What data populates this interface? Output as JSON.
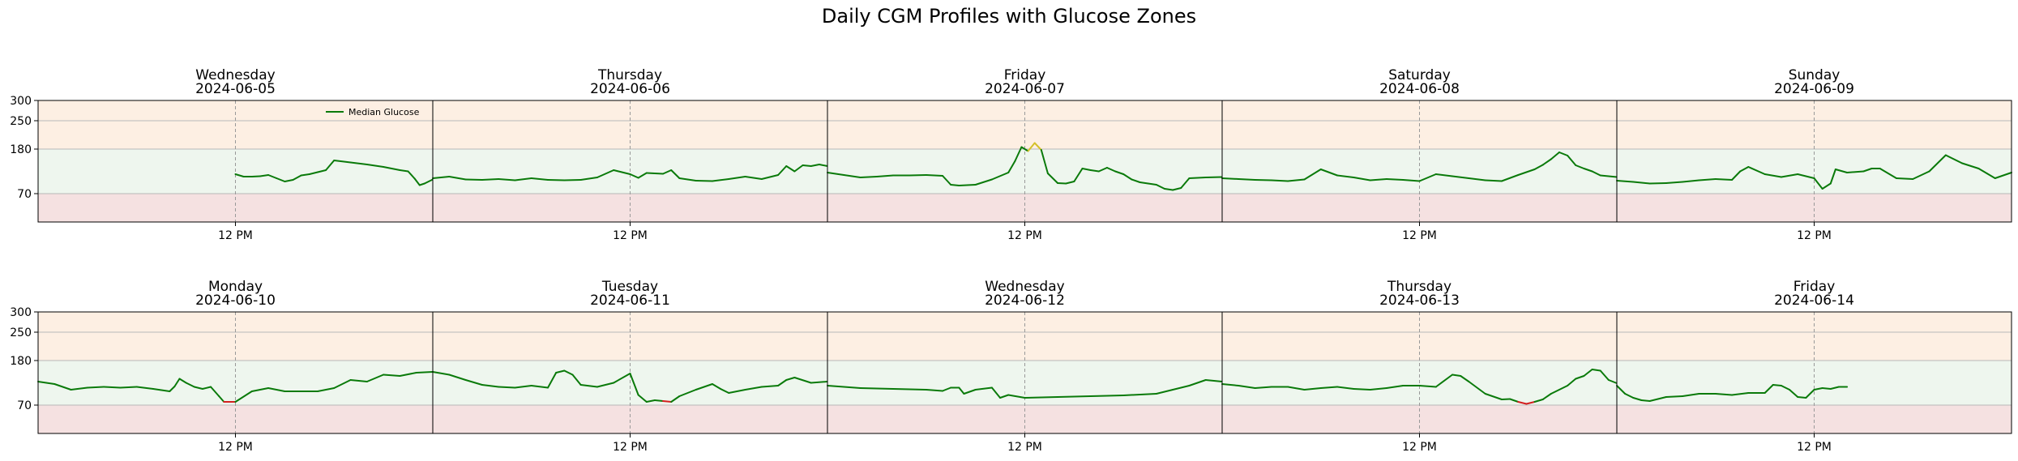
{
  "figure": {
    "title": "Daily CGM Profiles with Glucose Zones"
  },
  "chart_data": {
    "type": "line",
    "y_range": [
      0,
      300
    ],
    "y_ticks": [
      70,
      180,
      250,
      300
    ],
    "x_tick_label": "12 PM",
    "zones": [
      {
        "name": "low",
        "from": 0,
        "to": 70,
        "color": "#f5e1e1"
      },
      {
        "name": "in-range",
        "from": 70,
        "to": 180,
        "color": "#eef6ee"
      },
      {
        "name": "high",
        "from": 180,
        "to": 300,
        "color": "#fdefe3"
      }
    ],
    "colors": {
      "normal": "#0a7a0a",
      "low": "#d42020",
      "high": "#d4c02a",
      "gridline": "#b8b8b8",
      "midday": "#999999"
    },
    "legend": {
      "label": "Median Glucose",
      "placement": "upper-right of first panel"
    },
    "panels": [
      {
        "weekday": "Wednesday",
        "date": "2024-06-05",
        "points": [
          [
            12,
            118
          ],
          [
            12.5,
            112
          ],
          [
            13,
            112
          ],
          [
            13.5,
            113
          ],
          [
            14,
            116
          ],
          [
            14.5,
            108
          ],
          [
            15,
            100
          ],
          [
            15.5,
            104
          ],
          [
            16,
            115
          ],
          [
            16.5,
            118
          ],
          [
            17,
            123
          ],
          [
            17.5,
            128
          ],
          [
            18,
            152
          ],
          [
            19,
            147
          ],
          [
            20,
            142
          ],
          [
            21,
            136
          ],
          [
            22,
            128
          ],
          [
            22.5,
            125
          ],
          [
            22.9,
            107
          ],
          [
            23.2,
            91
          ],
          [
            23.5,
            95
          ],
          [
            24,
            105
          ]
        ]
      },
      {
        "weekday": "Thursday",
        "date": "2024-06-06",
        "points": [
          [
            0,
            108
          ],
          [
            1,
            112
          ],
          [
            2,
            105
          ],
          [
            3,
            104
          ],
          [
            4,
            106
          ],
          [
            5,
            103
          ],
          [
            6,
            108
          ],
          [
            7,
            104
          ],
          [
            8,
            103
          ],
          [
            9,
            104
          ],
          [
            10,
            110
          ],
          [
            11,
            128
          ],
          [
            12,
            118
          ],
          [
            12.5,
            109
          ],
          [
            13,
            121
          ],
          [
            14,
            119
          ],
          [
            14.5,
            128
          ],
          [
            15,
            108
          ],
          [
            16,
            102
          ],
          [
            17,
            101
          ],
          [
            18,
            106
          ],
          [
            19,
            112
          ],
          [
            20,
            106
          ],
          [
            21,
            116
          ],
          [
            21.5,
            138
          ],
          [
            22,
            125
          ],
          [
            22.5,
            140
          ],
          [
            23,
            138
          ],
          [
            23.5,
            142
          ],
          [
            24,
            138
          ]
        ]
      },
      {
        "weekday": "Friday",
        "date": "2024-06-07",
        "points": [
          [
            0,
            122
          ],
          [
            1,
            116
          ],
          [
            2,
            110
          ],
          [
            3,
            112
          ],
          [
            4,
            115
          ],
          [
            5,
            115
          ],
          [
            6,
            116
          ],
          [
            7,
            114
          ],
          [
            7.5,
            92
          ],
          [
            8,
            90
          ],
          [
            9,
            92
          ],
          [
            10,
            105
          ],
          [
            11,
            122
          ],
          [
            11.4,
            150
          ],
          [
            11.8,
            185
          ],
          [
            12.2,
            175
          ],
          [
            12.6,
            195
          ],
          [
            13,
            178
          ],
          [
            13.4,
            120
          ],
          [
            14,
            96
          ],
          [
            14.5,
            95
          ],
          [
            15,
            100
          ],
          [
            15.5,
            132
          ],
          [
            16,
            128
          ],
          [
            16.5,
            125
          ],
          [
            17,
            134
          ],
          [
            17.5,
            125
          ],
          [
            18,
            118
          ],
          [
            18.5,
            105
          ],
          [
            19,
            98
          ],
          [
            19.5,
            95
          ],
          [
            20,
            92
          ],
          [
            20.5,
            82
          ],
          [
            21,
            79
          ],
          [
            21.5,
            84
          ],
          [
            22,
            108
          ],
          [
            23,
            110
          ],
          [
            24,
            111
          ]
        ]
      },
      {
        "weekday": "Saturday",
        "date": "2024-06-08",
        "points": [
          [
            0,
            108
          ],
          [
            1,
            106
          ],
          [
            2,
            104
          ],
          [
            3,
            103
          ],
          [
            4,
            101
          ],
          [
            5,
            105
          ],
          [
            6,
            130
          ],
          [
            7,
            115
          ],
          [
            8,
            110
          ],
          [
            9,
            103
          ],
          [
            10,
            106
          ],
          [
            11,
            104
          ],
          [
            12,
            101
          ],
          [
            13,
            118
          ],
          [
            14,
            113
          ],
          [
            15,
            108
          ],
          [
            16,
            103
          ],
          [
            17,
            101
          ],
          [
            18,
            116
          ],
          [
            19,
            130
          ],
          [
            19.5,
            141
          ],
          [
            20,
            155
          ],
          [
            20.5,
            172
          ],
          [
            21,
            164
          ],
          [
            21.5,
            140
          ],
          [
            22,
            132
          ],
          [
            22.5,
            125
          ],
          [
            23,
            115
          ],
          [
            24,
            111
          ]
        ]
      },
      {
        "weekday": "Sunday",
        "date": "2024-06-09",
        "points": [
          [
            0,
            102
          ],
          [
            1,
            99
          ],
          [
            2,
            95
          ],
          [
            3,
            96
          ],
          [
            4,
            99
          ],
          [
            5,
            103
          ],
          [
            6,
            106
          ],
          [
            7,
            104
          ],
          [
            7.5,
            125
          ],
          [
            8,
            136
          ],
          [
            9,
            118
          ],
          [
            10,
            111
          ],
          [
            11,
            118
          ],
          [
            12,
            108
          ],
          [
            12.5,
            82
          ],
          [
            13,
            95
          ],
          [
            13.3,
            130
          ],
          [
            14,
            122
          ],
          [
            15,
            125
          ],
          [
            15.5,
            132
          ],
          [
            16,
            132
          ],
          [
            17,
            108
          ],
          [
            18,
            106
          ],
          [
            19,
            125
          ],
          [
            20,
            165
          ],
          [
            21,
            145
          ],
          [
            22,
            132
          ],
          [
            22.5,
            120
          ],
          [
            23,
            108
          ],
          [
            24,
            122
          ]
        ]
      },
      {
        "weekday": "Monday",
        "date": "2024-06-10",
        "points": [
          [
            0,
            128
          ],
          [
            1,
            122
          ],
          [
            2,
            108
          ],
          [
            3,
            113
          ],
          [
            4,
            115
          ],
          [
            5,
            113
          ],
          [
            6,
            115
          ],
          [
            7,
            110
          ],
          [
            8,
            104
          ],
          [
            8.3,
            116
          ],
          [
            8.6,
            135
          ],
          [
            9,
            125
          ],
          [
            9.5,
            115
          ],
          [
            10,
            110
          ],
          [
            10.5,
            115
          ],
          [
            11,
            92
          ],
          [
            11.3,
            78
          ],
          [
            11.5,
            78
          ],
          [
            12,
            78
          ],
          [
            13,
            104
          ],
          [
            14,
            112
          ],
          [
            15,
            104
          ],
          [
            16,
            104
          ],
          [
            17,
            104
          ],
          [
            18,
            112
          ],
          [
            19,
            132
          ],
          [
            20,
            128
          ],
          [
            21,
            145
          ],
          [
            22,
            142
          ],
          [
            23,
            150
          ],
          [
            24,
            152
          ]
        ]
      },
      {
        "weekday": "Tuesday",
        "date": "2024-06-11",
        "points": [
          [
            0,
            152
          ],
          [
            1,
            145
          ],
          [
            2,
            132
          ],
          [
            3,
            120
          ],
          [
            4,
            115
          ],
          [
            5,
            113
          ],
          [
            6,
            118
          ],
          [
            7,
            113
          ],
          [
            7.5,
            150
          ],
          [
            8,
            155
          ],
          [
            8.5,
            145
          ],
          [
            9,
            120
          ],
          [
            10,
            115
          ],
          [
            11,
            125
          ],
          [
            12,
            148
          ],
          [
            12.5,
            95
          ],
          [
            13,
            78
          ],
          [
            13.5,
            82
          ],
          [
            14,
            80
          ],
          [
            14.5,
            78
          ],
          [
            15,
            92
          ],
          [
            16,
            108
          ],
          [
            17,
            122
          ],
          [
            17.5,
            110
          ],
          [
            18,
            100
          ],
          [
            19,
            108
          ],
          [
            20,
            115
          ],
          [
            21,
            118
          ],
          [
            21.5,
            132
          ],
          [
            22,
            138
          ],
          [
            23,
            125
          ],
          [
            24,
            128
          ]
        ]
      },
      {
        "weekday": "Wednesday",
        "date": "2024-06-12",
        "points": [
          [
            0,
            118
          ],
          [
            2,
            112
          ],
          [
            4,
            110
          ],
          [
            6,
            108
          ],
          [
            7,
            105
          ],
          [
            7.5,
            113
          ],
          [
            8,
            113
          ],
          [
            8.3,
            98
          ],
          [
            9,
            108
          ],
          [
            10,
            113
          ],
          [
            10.5,
            88
          ],
          [
            11,
            95
          ],
          [
            12,
            88
          ],
          [
            14,
            90
          ],
          [
            16,
            92
          ],
          [
            18,
            94
          ],
          [
            20,
            98
          ],
          [
            21,
            108
          ],
          [
            22,
            118
          ],
          [
            23,
            132
          ],
          [
            24,
            128
          ]
        ]
      },
      {
        "weekday": "Thursday",
        "date": "2024-06-13",
        "points": [
          [
            0,
            122
          ],
          [
            1,
            118
          ],
          [
            2,
            112
          ],
          [
            3,
            115
          ],
          [
            4,
            115
          ],
          [
            5,
            108
          ],
          [
            6,
            112
          ],
          [
            7,
            115
          ],
          [
            8,
            110
          ],
          [
            9,
            108
          ],
          [
            10,
            112
          ],
          [
            11,
            118
          ],
          [
            12,
            118
          ],
          [
            13,
            115
          ],
          [
            14,
            145
          ],
          [
            14.5,
            142
          ],
          [
            15,
            128
          ],
          [
            16,
            98
          ],
          [
            17,
            84
          ],
          [
            17.5,
            85
          ],
          [
            18,
            78
          ],
          [
            18.5,
            73
          ],
          [
            19,
            78
          ],
          [
            19.5,
            84
          ],
          [
            20,
            98
          ],
          [
            21,
            118
          ],
          [
            21.5,
            135
          ],
          [
            22,
            142
          ],
          [
            22.5,
            158
          ],
          [
            23,
            155
          ],
          [
            23.5,
            132
          ],
          [
            24,
            124
          ]
        ]
      },
      {
        "weekday": "Friday",
        "date": "2024-06-14",
        "points": [
          [
            0,
            118
          ],
          [
            0.5,
            98
          ],
          [
            1,
            88
          ],
          [
            1.5,
            82
          ],
          [
            2,
            80
          ],
          [
            3,
            90
          ],
          [
            4,
            92
          ],
          [
            5,
            98
          ],
          [
            6,
            98
          ],
          [
            7,
            95
          ],
          [
            8,
            100
          ],
          [
            9,
            100
          ],
          [
            9.5,
            120
          ],
          [
            10,
            118
          ],
          [
            10.5,
            108
          ],
          [
            11,
            90
          ],
          [
            11.5,
            88
          ],
          [
            12,
            108
          ],
          [
            12.5,
            112
          ],
          [
            13,
            110
          ],
          [
            13.5,
            115
          ],
          [
            14,
            115
          ]
        ]
      }
    ]
  }
}
